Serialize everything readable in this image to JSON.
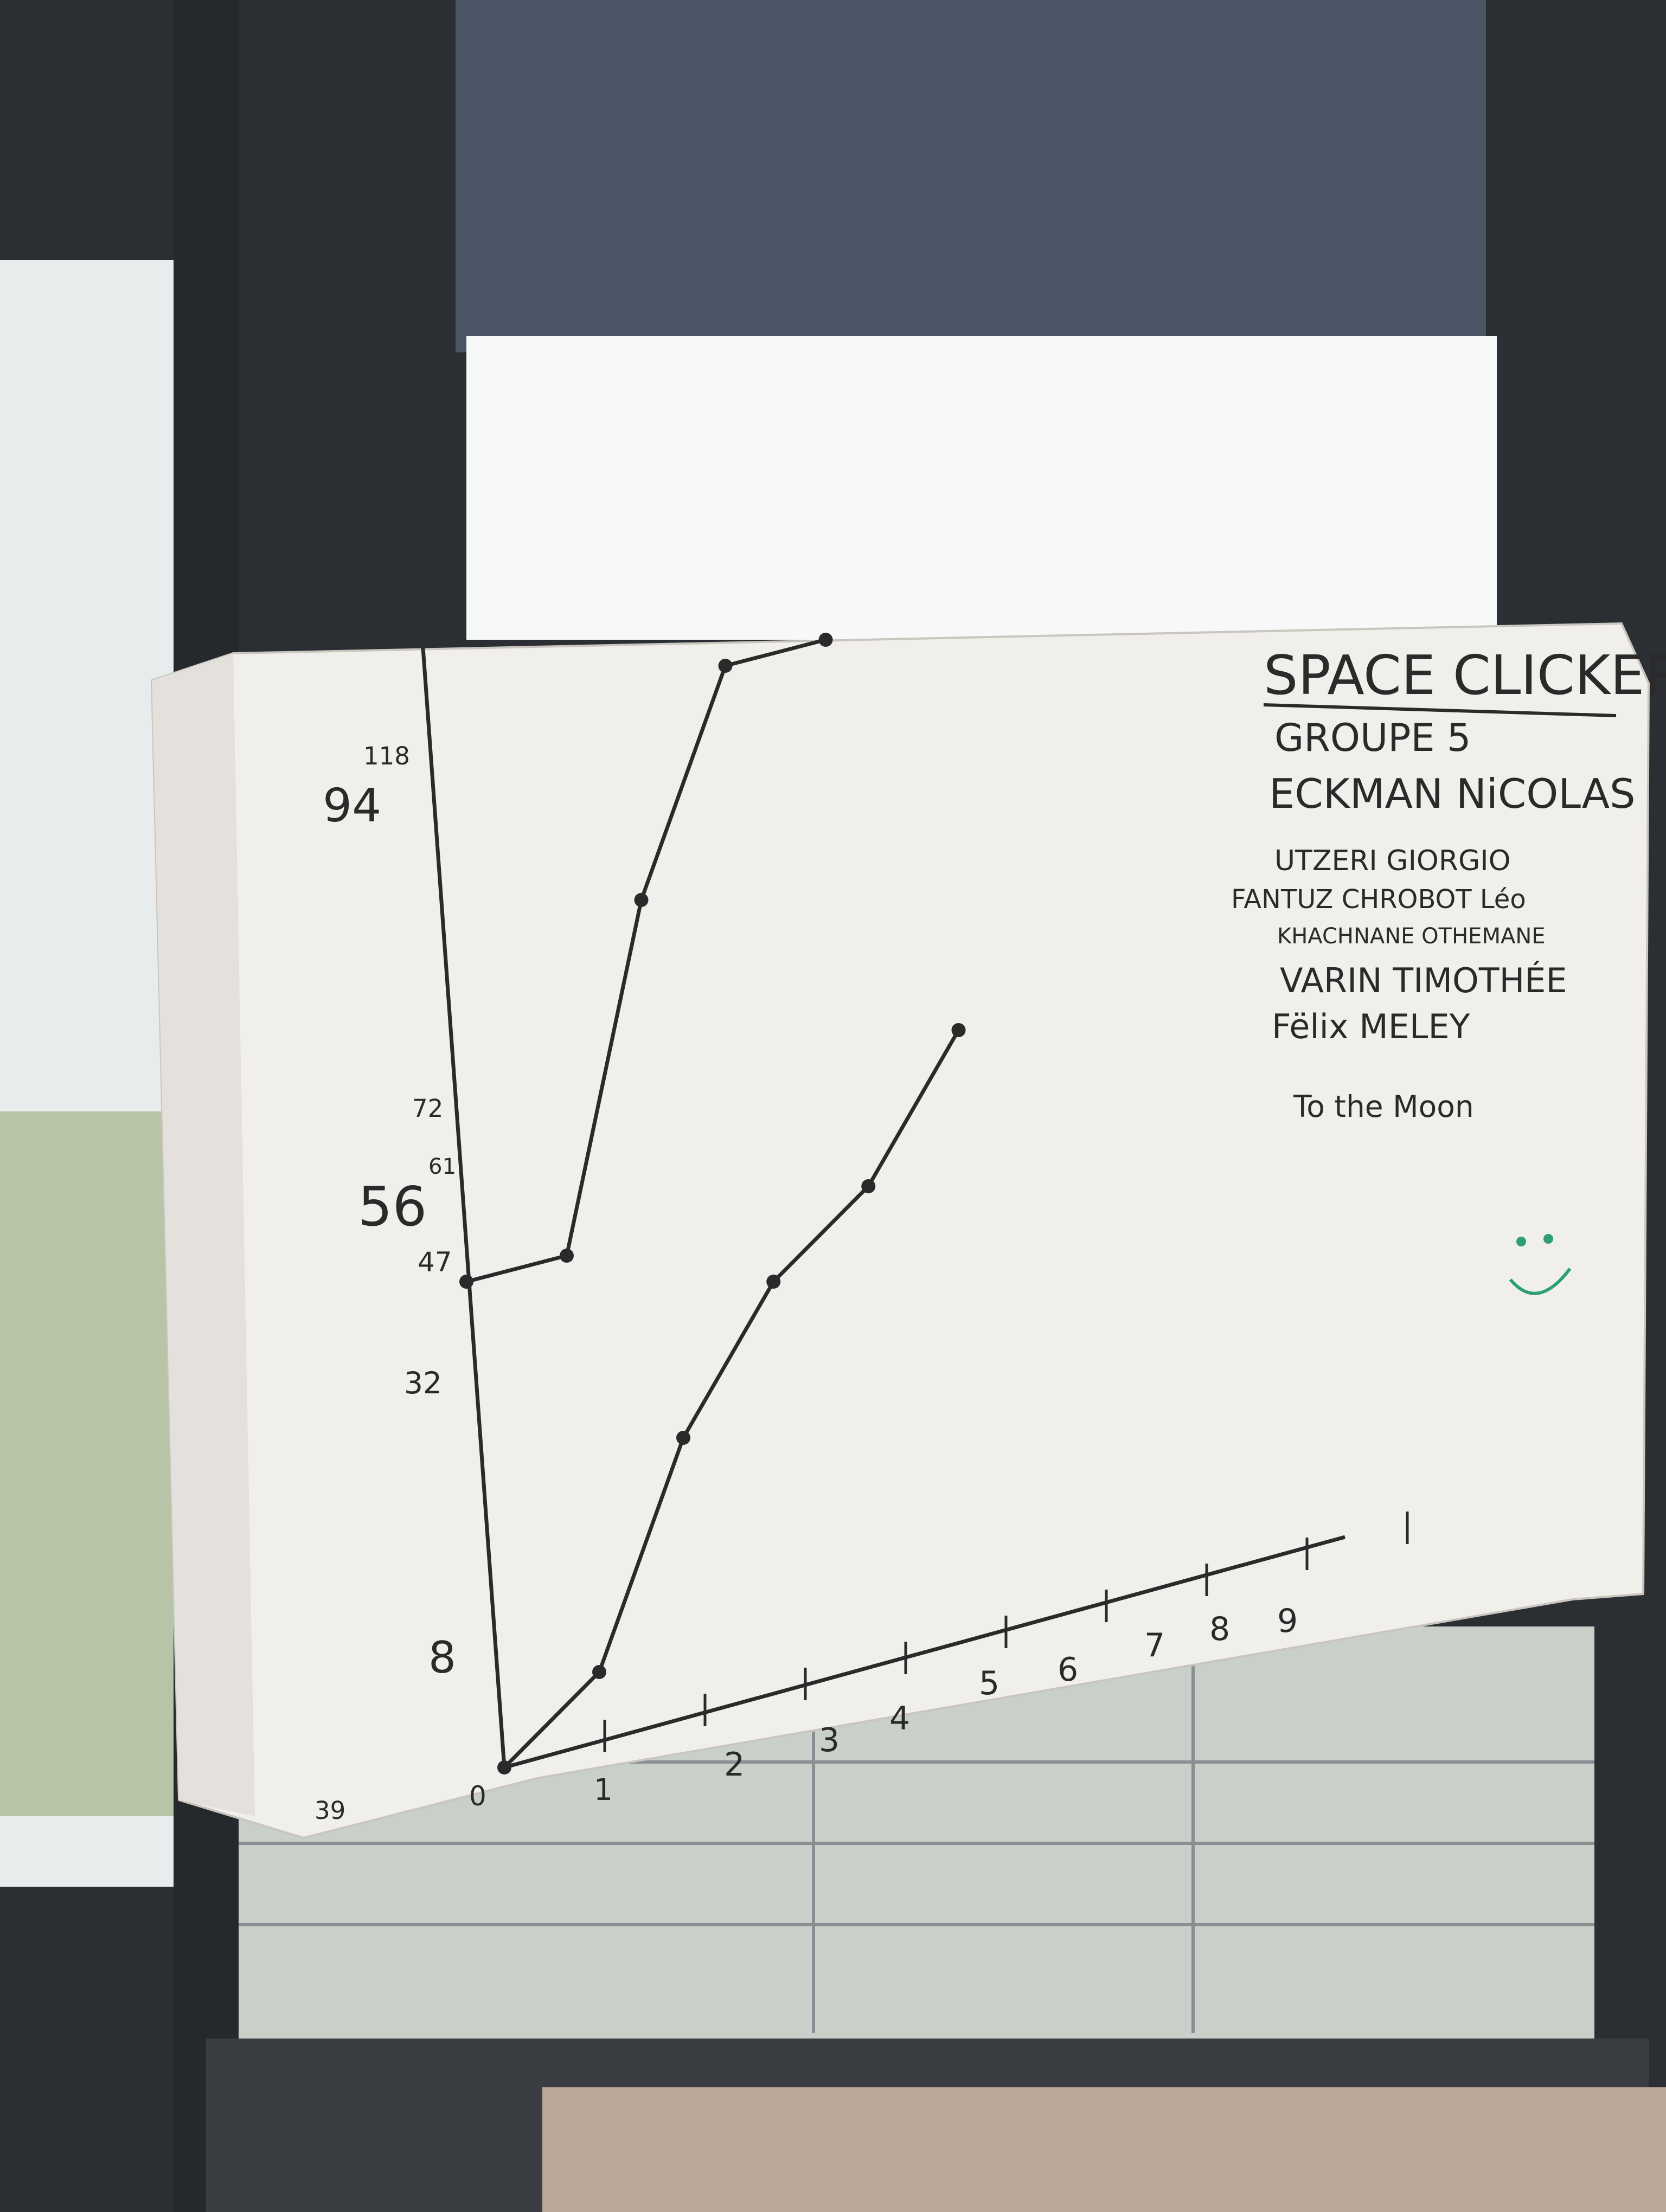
{
  "poster": {
    "title": "SPACE CLICKER",
    "group": "GROUPE 5",
    "members": [
      "ECKMAN NiCOLAS",
      "UTZERI GIORGIO",
      "FANTUZ CHROBOT Léo",
      "KHACHNANE OTHEMANE",
      "VARIN TIMOTHÉE",
      "Fëlix MELEY"
    ],
    "slogan": "To the Moon",
    "smiley_color": "#2e9e78"
  },
  "chart_data": {
    "type": "line",
    "x": [
      0,
      1,
      2,
      3,
      4,
      5,
      6,
      7,
      8,
      9
    ],
    "y_ticks": [
      "8",
      "32",
      "47",
      "56",
      "61",
      "72",
      "94",
      "118"
    ],
    "x_ticks": [
      "0",
      "1",
      "2",
      "3",
      "4",
      "5",
      "6",
      "7",
      "8",
      "9"
    ],
    "extra_label": "39",
    "series": [
      {
        "points": [
          [
            0,
            56
          ],
          [
            1,
            56
          ],
          [
            2,
            94
          ],
          [
            3,
            118
          ],
          [
            4,
            118
          ]
        ]
      },
      {
        "points": [
          [
            0,
            0
          ],
          [
            1,
            8
          ],
          [
            2,
            32
          ],
          [
            3,
            47
          ],
          [
            4,
            55
          ],
          [
            5,
            70
          ]
        ]
      }
    ],
    "ink_color": "#2a2a2a"
  }
}
